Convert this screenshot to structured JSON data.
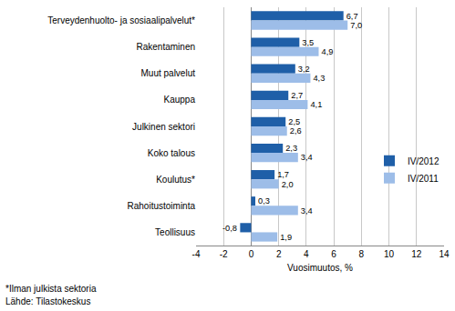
{
  "chart_data": {
    "type": "bar",
    "orientation": "horizontal",
    "categories": [
      "Terveydenhuolto- ja sosiaalipalvelut*",
      "Rakentaminen",
      "Muut palvelut",
      "Kauppa",
      "Julkinen sektori",
      "Koko talous",
      "Koulutus*",
      "Rahoitustoiminta",
      "Teollisuus"
    ],
    "series": [
      {
        "name": "IV/2012",
        "color": "#1f5fa8",
        "values": [
          6.7,
          3.5,
          3.2,
          2.7,
          2.5,
          2.3,
          1.7,
          0.3,
          -0.8
        ],
        "value_labels": [
          "6,7",
          "3,5",
          "3,2",
          "2,7",
          "2,5",
          "2,3",
          "1,7",
          "0,3",
          "-0,8"
        ]
      },
      {
        "name": "IV/2011",
        "color": "#9dbde8",
        "values": [
          7.0,
          4.9,
          4.3,
          4.1,
          2.6,
          3.4,
          2.0,
          3.4,
          1.9
        ],
        "value_labels": [
          "7,0",
          "4,9",
          "4,3",
          "4,1",
          "2,6",
          "3,4",
          "2,0",
          "3,4",
          "1,9"
        ]
      }
    ],
    "x_label": "Vuosimuutos, %",
    "xlim": [
      -4,
      14
    ],
    "xticks": [
      -4,
      -2,
      0,
      2,
      4,
      6,
      8,
      10,
      12,
      14
    ],
    "grid": true,
    "data_labels": true,
    "legend": "right",
    "annotations": [
      "*Ilman julkista sektoria",
      "Lähde: Tilastokeskus"
    ]
  }
}
